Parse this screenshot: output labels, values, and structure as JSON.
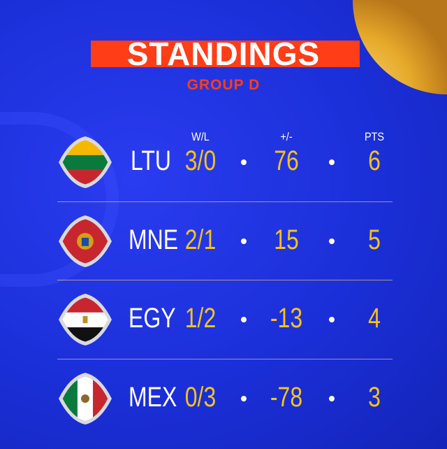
{
  "header": {
    "title": "STANDINGS",
    "subtitle": "GROUP D"
  },
  "columns": {
    "wl": "W/L",
    "diff": "+/-",
    "pts": "PTS"
  },
  "colors": {
    "background": "#1b2fd8",
    "accent": "#ff3d17",
    "value": "#f5c21b"
  },
  "rows": [
    {
      "team": "LTU",
      "wl": "3/0",
      "diff": "76",
      "pts": "6",
      "flag": "lithuania-flag"
    },
    {
      "team": "MNE",
      "wl": "2/1",
      "diff": "15",
      "pts": "5",
      "flag": "montenegro-flag"
    },
    {
      "team": "EGY",
      "wl": "1/2",
      "diff": "-13",
      "pts": "4",
      "flag": "egypt-flag"
    },
    {
      "team": "MEX",
      "wl": "0/3",
      "diff": "-78",
      "pts": "3",
      "flag": "mexico-flag"
    }
  ]
}
